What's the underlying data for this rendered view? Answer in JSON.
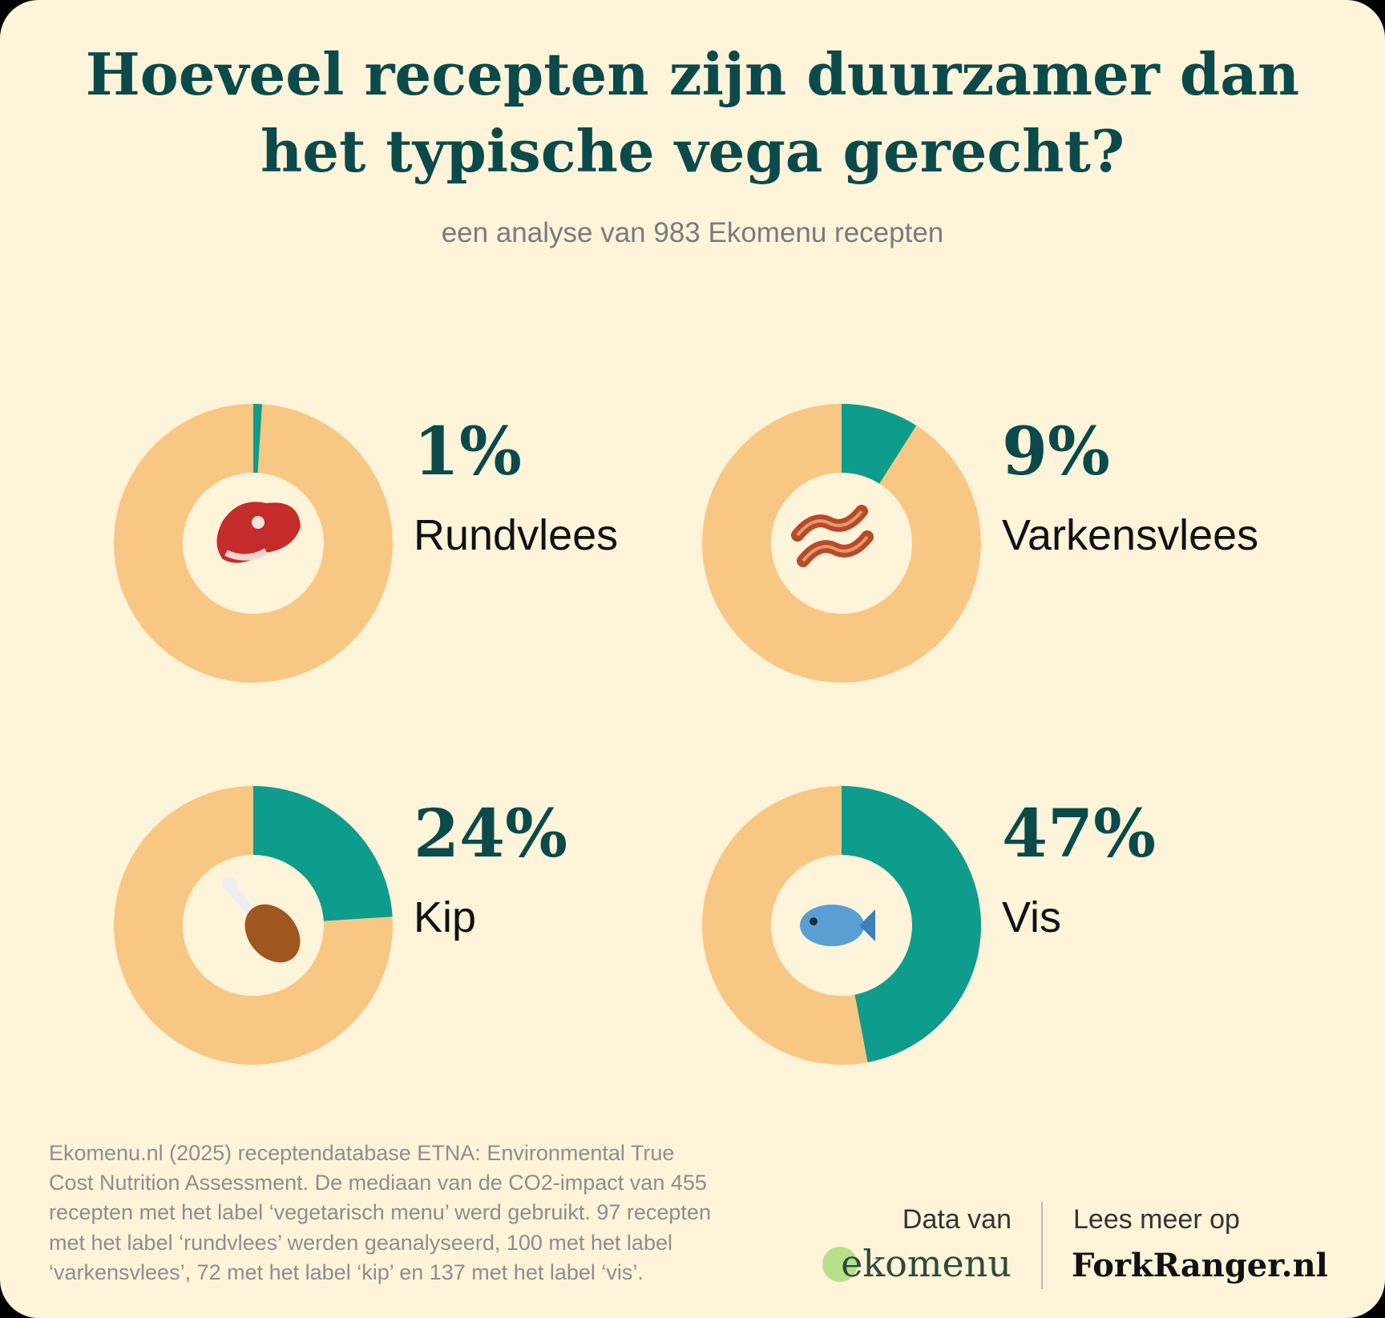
{
  "title": [
    "Hoeveel recepten zijn duurzamer dan",
    "het typische vega gerecht?"
  ],
  "subtitle": "een analyse van 983 Ekomenu recepten",
  "chart_data": [
    {
      "type": "donut",
      "categories": [
        "Rundvlees"
      ],
      "values": [
        1
      ],
      "value_labels": [
        "1%"
      ],
      "color": "#0e9c8c",
      "track_color": "#f9c784"
    },
    {
      "type": "donut",
      "categories": [
        "Varkensvlees"
      ],
      "values": [
        9
      ],
      "value_labels": [
        "9%"
      ],
      "color": "#0e9c8c",
      "track_color": "#f9c784"
    },
    {
      "type": "donut",
      "categories": [
        "Kip"
      ],
      "values": [
        24
      ],
      "value_labels": [
        "24%"
      ],
      "color": "#0e9c8c",
      "track_color": "#f9c784"
    },
    {
      "type": "donut",
      "categories": [
        "Vis"
      ],
      "values": [
        47
      ],
      "value_labels": [
        "47%"
      ],
      "color": "#0e9c8c",
      "track_color": "#f9c784"
    }
  ],
  "footer": {
    "source": [
      "Ekomenu.nl (2025) receptendatabase ETNA: Environmental True",
      "Cost Nutrition Assessment. De mediaan van de CO2-impact van 455",
      "recepten met het label ‘vegetarisch menu’ werd gebruikt. 97 recepten",
      "met het label ‘rundvlees’ werden geanalyseerd, 100 met het label",
      "‘varkensvlees’, 72 met het label ‘kip’ en 137 met het label ‘vis’."
    ],
    "data_label": "Data van",
    "data_brand": "ekomenu",
    "read_label": "Lees meer op",
    "read_brand": "ForkRanger.nl"
  }
}
